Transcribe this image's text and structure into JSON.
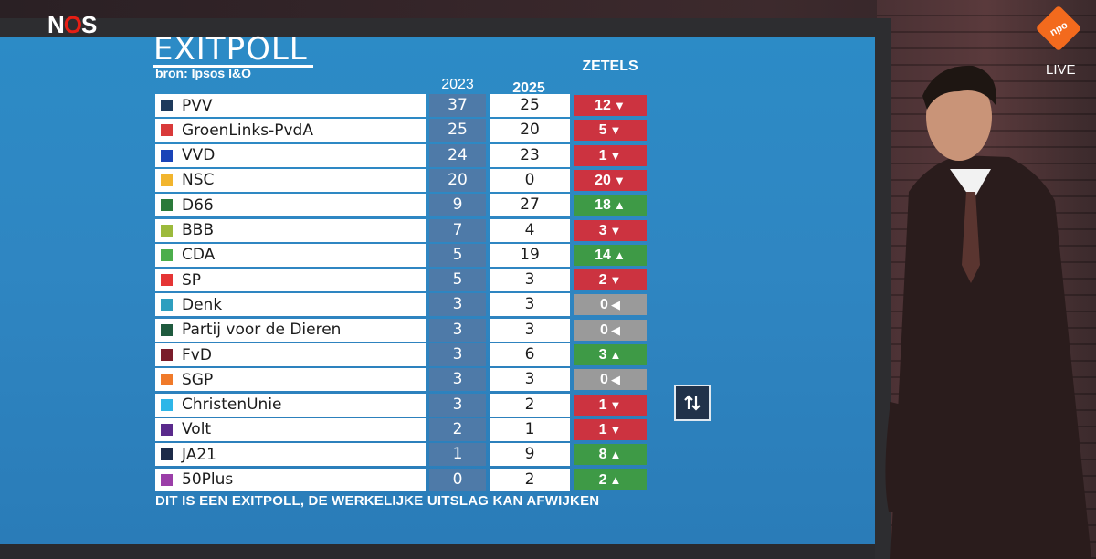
{
  "broadcaster_logo": "NOS",
  "channel_logo": "npo",
  "live_label": "LIVE",
  "graphic": {
    "title": "EXITPOLL",
    "source": "bron: Ipsos I&O",
    "headers": {
      "y2023": "2023",
      "y2025": "2025",
      "zetels": "ZETELS"
    },
    "footnote": "DIT IS EEN EXITPOLL, DE WERKELIJKE UITSLAG KAN AFWIJKEN",
    "sort_icon": "sort-up-down-icon",
    "rows": [
      {
        "party": "PVV",
        "color": "#1e3a5c",
        "y2023": "37",
        "y2025": "25",
        "delta": "12",
        "dir": "down"
      },
      {
        "party": "GroenLinks-PvdA",
        "color": "#d93a3a",
        "y2023": "25",
        "y2025": "20",
        "delta": "5",
        "dir": "down"
      },
      {
        "party": "VVD",
        "color": "#1a44b8",
        "y2023": "24",
        "y2025": "23",
        "delta": "1",
        "dir": "down"
      },
      {
        "party": "NSC",
        "color": "#f2b52e",
        "y2023": "20",
        "y2025": "0",
        "delta": "20",
        "dir": "down"
      },
      {
        "party": "D66",
        "color": "#2a7a3a",
        "y2023": "9",
        "y2025": "27",
        "delta": "18",
        "dir": "up"
      },
      {
        "party": "BBB",
        "color": "#9cba3c",
        "y2023": "7",
        "y2025": "4",
        "delta": "3",
        "dir": "down"
      },
      {
        "party": "CDA",
        "color": "#4cae4c",
        "y2023": "5",
        "y2025": "19",
        "delta": "14",
        "dir": "up"
      },
      {
        "party": "SP",
        "color": "#e53535",
        "y2023": "5",
        "y2025": "3",
        "delta": "2",
        "dir": "down"
      },
      {
        "party": "Denk",
        "color": "#2e9fbf",
        "y2023": "3",
        "y2025": "3",
        "delta": "0",
        "dir": "same"
      },
      {
        "party": "Partij voor de Dieren",
        "color": "#1f5a3e",
        "y2023": "3",
        "y2025": "3",
        "delta": "0",
        "dir": "same"
      },
      {
        "party": "FvD",
        "color": "#7a1c2a",
        "y2023": "3",
        "y2025": "6",
        "delta": "3",
        "dir": "up"
      },
      {
        "party": "SGP",
        "color": "#f07a2a",
        "y2023": "3",
        "y2025": "3",
        "delta": "0",
        "dir": "same"
      },
      {
        "party": "ChristenUnie",
        "color": "#2eb6e8",
        "y2023": "3",
        "y2025": "2",
        "delta": "1",
        "dir": "down"
      },
      {
        "party": "Volt",
        "color": "#5a2a8c",
        "y2023": "2",
        "y2025": "1",
        "delta": "1",
        "dir": "down"
      },
      {
        "party": "JA21",
        "color": "#1c2a48",
        "y2023": "1",
        "y2025": "9",
        "delta": "8",
        "dir": "up"
      },
      {
        "party": "50Plus",
        "color": "#9b3ea8",
        "y2023": "0",
        "y2025": "2",
        "delta": "2",
        "dir": "up"
      }
    ]
  }
}
